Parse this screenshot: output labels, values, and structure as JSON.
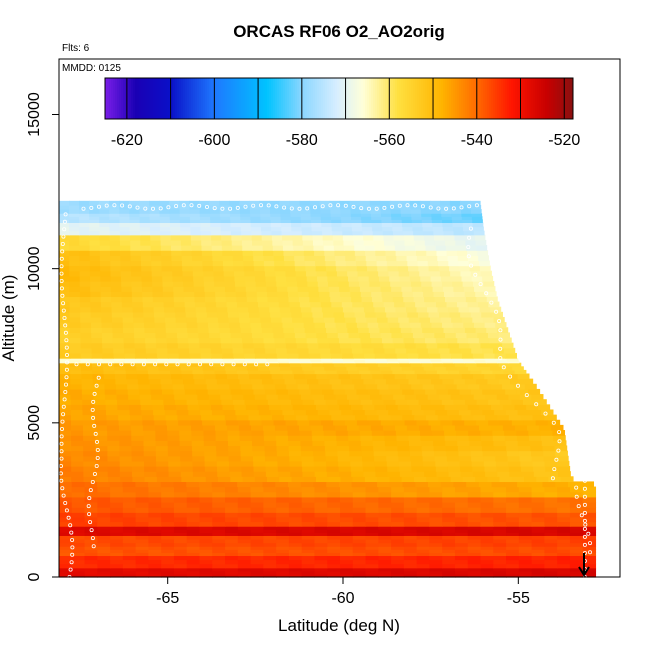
{
  "chart_data": {
    "type": "heatmap",
    "title": "ORCAS RF06 O2_AO2orig",
    "subtitle_lines": [
      "Flts: 6",
      "MMDD: 0125"
    ],
    "xlabel": "Latitude (deg N)",
    "ylabel": "Altitude (m)",
    "xlim": [
      -68.1,
      -52.1
    ],
    "ylim": [
      0,
      16800
    ],
    "x_ticks": [
      -65,
      -60,
      -55
    ],
    "x_tick_labels": [
      "-65",
      "-60",
      "-55"
    ],
    "y_ticks": [
      0,
      5000,
      10000,
      15000
    ],
    "y_tick_labels": [
      "0",
      "5000",
      "10000",
      "15000"
    ],
    "colorbar": {
      "min": -625,
      "max": -518,
      "ticks": [
        -620,
        -600,
        -580,
        -560,
        -540,
        -520
      ],
      "tick_labels": [
        "-620",
        "-600",
        "-580",
        "-560",
        "-540",
        "-520"
      ],
      "divisions": [
        -620,
        -610,
        -600,
        -590,
        -580,
        -570,
        -560,
        -550,
        -540,
        -530,
        -520
      ],
      "stops": [
        {
          "v": -625,
          "c": "#7a1ee8"
        },
        {
          "v": -618,
          "c": "#1a00b4"
        },
        {
          "v": -610,
          "c": "#0a10c8"
        },
        {
          "v": -600,
          "c": "#1e78ff"
        },
        {
          "v": -588,
          "c": "#00c3ff"
        },
        {
          "v": -580,
          "c": "#8ad6ff"
        },
        {
          "v": -572,
          "c": "#d7eeff"
        },
        {
          "v": -566,
          "c": "#ffffd8"
        },
        {
          "v": -558,
          "c": "#ffe040"
        },
        {
          "v": -548,
          "c": "#ffb400"
        },
        {
          "v": -540,
          "c": "#ff6a00"
        },
        {
          "v": -532,
          "c": "#ff1500"
        },
        {
          "v": -524,
          "c": "#c80000"
        },
        {
          "v": -518,
          "c": "#8a1010"
        }
      ]
    },
    "profiles": [
      {
        "lat": -67.9,
        "alt_range": [
          0,
          11800
        ]
      },
      {
        "lat": -55.6,
        "alt_range": [
          800,
          11500
        ]
      },
      {
        "lat": -53.1,
        "alt_range": [
          0,
          3200
        ]
      }
    ],
    "layers": [
      {
        "bottom": 0,
        "top": 300,
        "v_south": -528,
        "v_north": -526
      },
      {
        "bottom": 300,
        "top": 700,
        "v_south": -534,
        "v_north": -533
      },
      {
        "bottom": 700,
        "top": 1000,
        "v_south": -538,
        "v_north": -537
      },
      {
        "bottom": 1000,
        "top": 1350,
        "v_south": -537,
        "v_north": -536
      },
      {
        "bottom": 1350,
        "top": 1650,
        "v_south": -527,
        "v_north": -526
      },
      {
        "bottom": 1650,
        "top": 2100,
        "v_south": -536,
        "v_north": -538
      },
      {
        "bottom": 2100,
        "top": 2600,
        "v_south": -538,
        "v_north": -541
      },
      {
        "bottom": 2600,
        "top": 3100,
        "v_south": -540,
        "v_north": -548
      },
      {
        "bottom": 3100,
        "top": 3600,
        "v_south": -542,
        "v_north": -552
      },
      {
        "bottom": 3600,
        "top": 4100,
        "v_south": -543,
        "v_north": -553
      },
      {
        "bottom": 4100,
        "top": 4600,
        "v_south": -544,
        "v_north": -551
      },
      {
        "bottom": 4600,
        "top": 5100,
        "v_south": -545,
        "v_north": -548
      },
      {
        "bottom": 5100,
        "top": 5600,
        "v_south": -546,
        "v_north": -551
      },
      {
        "bottom": 5600,
        "top": 6100,
        "v_south": -547,
        "v_north": -552
      },
      {
        "bottom": 6100,
        "top": 6600,
        "v_south": -548,
        "v_north": -553
      },
      {
        "bottom": 6600,
        "top": 6950,
        "v_south": -550,
        "v_north": -556
      },
      {
        "bottom": 6950,
        "top": 7100,
        "v_south": -566,
        "v_north": -566
      },
      {
        "bottom": 7100,
        "top": 7600,
        "v_south": -553,
        "v_north": -559
      },
      {
        "bottom": 7600,
        "top": 8100,
        "v_south": -554,
        "v_north": -561
      },
      {
        "bottom": 8100,
        "top": 8600,
        "v_south": -553,
        "v_north": -562
      },
      {
        "bottom": 8600,
        "top": 9100,
        "v_south": -552,
        "v_north": -563
      },
      {
        "bottom": 9100,
        "top": 9600,
        "v_south": -550,
        "v_north": -564
      },
      {
        "bottom": 9600,
        "top": 10100,
        "v_south": -549,
        "v_north": -565
      },
      {
        "bottom": 10100,
        "top": 10600,
        "v_south": -550,
        "v_north": -567
      },
      {
        "bottom": 10600,
        "top": 11100,
        "v_south": -556,
        "v_north": -570
      },
      {
        "bottom": 11100,
        "top": 11500,
        "v_south": -570,
        "v_north": -575
      },
      {
        "bottom": 11500,
        "top": 11800,
        "v_south": -575,
        "v_north": -582
      },
      {
        "bottom": 11800,
        "top": 12200,
        "v_south": -578,
        "v_north": -580
      }
    ]
  }
}
